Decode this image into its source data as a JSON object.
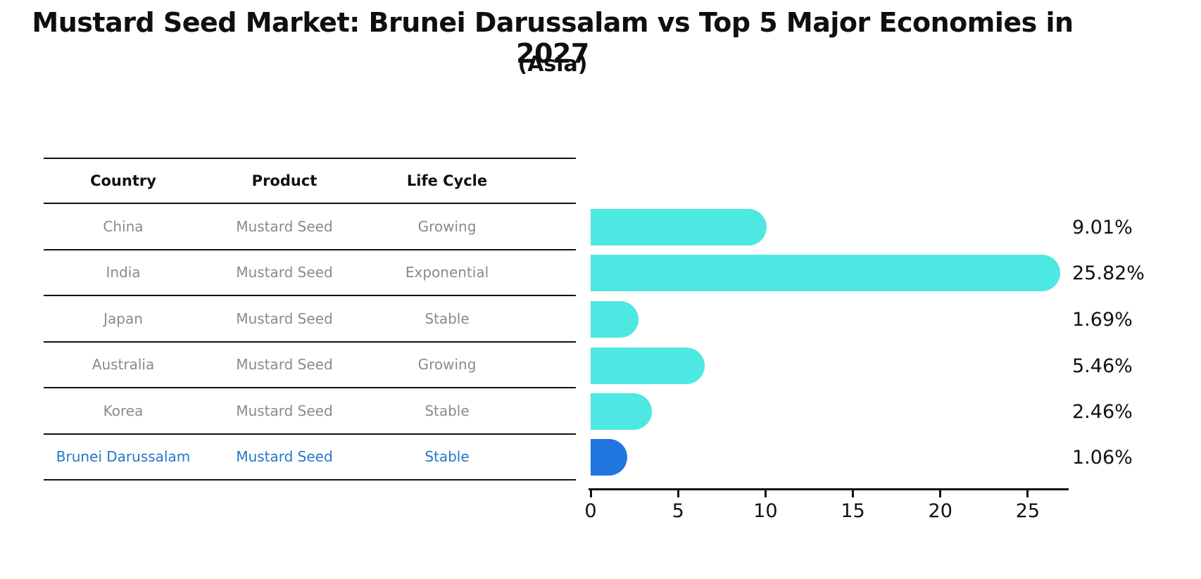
{
  "title": "Mustard Seed Market: Brunei Darussalam vs Top 5 Major Economies in 2027",
  "subtitle": "(Asia)",
  "table": {
    "headers": [
      "Country",
      "Product",
      "Life Cycle"
    ],
    "rows": [
      {
        "country": "China",
        "product": "Mustard Seed",
        "life_cycle": "Growing",
        "highlight": false
      },
      {
        "country": "India",
        "product": "Mustard Seed",
        "life_cycle": "Exponential",
        "highlight": false
      },
      {
        "country": "Japan",
        "product": "Mustard Seed",
        "life_cycle": "Stable",
        "highlight": false
      },
      {
        "country": "Australia",
        "product": "Mustard Seed",
        "life_cycle": "Growing",
        "highlight": false
      },
      {
        "country": "Korea",
        "product": "Mustard Seed",
        "life_cycle": "Stable",
        "highlight": false
      },
      {
        "country": "Brunei Darussalam",
        "product": "Mustard Seed",
        "life_cycle": "Stable",
        "highlight": true
      }
    ]
  },
  "chart_data": {
    "type": "bar",
    "orientation": "horizontal",
    "title": "Mustard Seed Market: Brunei Darussalam vs Top 5 Major Economies in 2027 (Asia)",
    "categories": [
      "China",
      "India",
      "Japan",
      "Australia",
      "Korea",
      "Brunei Darussalam"
    ],
    "values": [
      9.01,
      25.82,
      1.69,
      5.46,
      2.46,
      1.06
    ],
    "value_labels": [
      "9.01%",
      "25.82%",
      "1.69%",
      "5.46%",
      "2.46%",
      "1.06%"
    ],
    "x_ticks": [
      0,
      5,
      10,
      15,
      20,
      25
    ],
    "x_tick_labels": [
      "0",
      "5",
      "10",
      "15",
      "20",
      "25"
    ],
    "xlim": [
      0,
      27.3
    ],
    "grid": false,
    "legend": "none",
    "bar_color": "#4DE8E2",
    "highlight_color": "#2077E0",
    "highlight_index": 5
  },
  "colors": {
    "bar_cyan": "#4DE8E2",
    "bar_blue": "#2077E0",
    "highlight_text": "#2576C8",
    "row_text": "#8a8a8a",
    "axis_text": "#111111"
  }
}
